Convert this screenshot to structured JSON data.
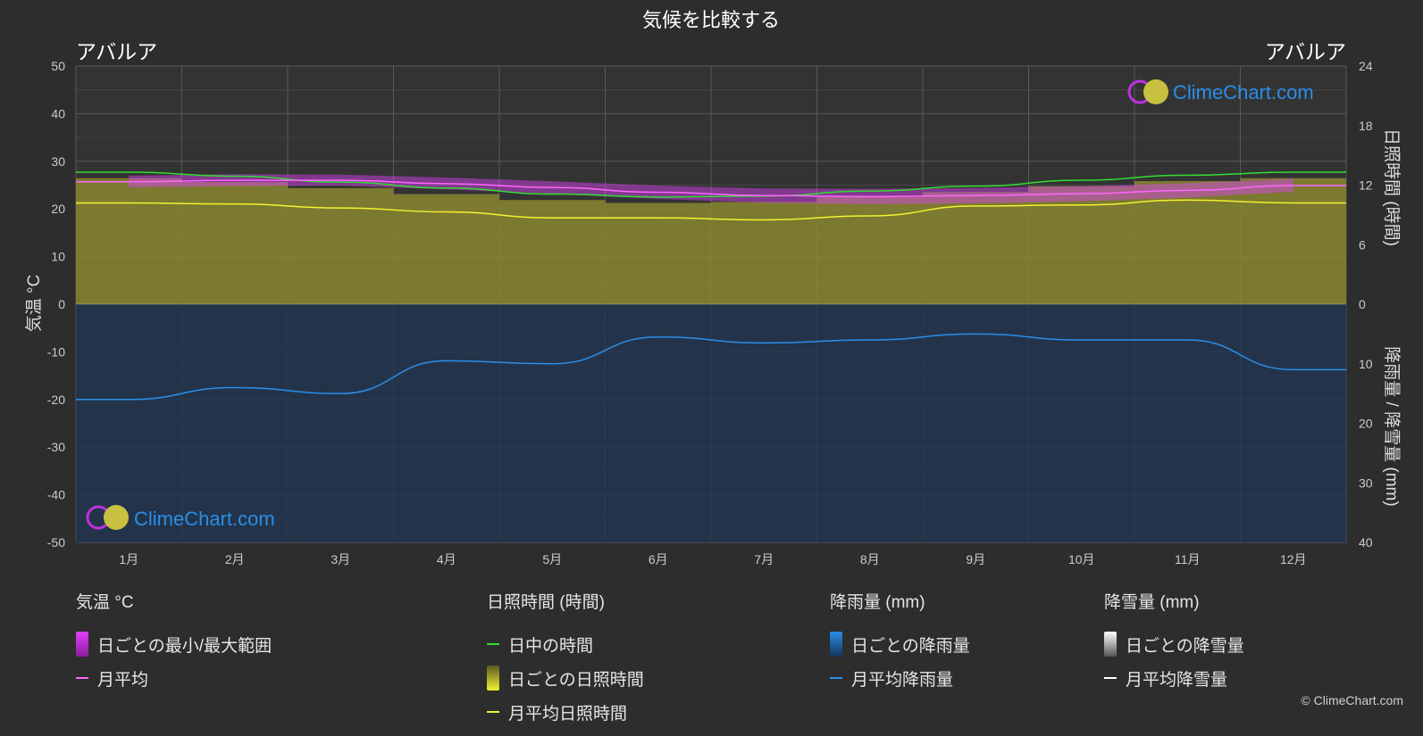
{
  "header": {
    "title": "気候を比較する",
    "location_left": "アバルア",
    "location_right": "アバルア",
    "left_axis_label": "気温 °C",
    "right_axis_label_top": "日照時間 (時間)",
    "right_axis_label_bottom": "降雨量 / 降雪量 (mm)"
  },
  "watermark": {
    "text": "ClimeChart.com"
  },
  "copyright": "© ClimeChart.com",
  "colors": {
    "background": "#2d2d2d",
    "grid": "#555555",
    "temp_range": "#e040fb",
    "temp_avg": "#ff66ff",
    "daylight": "#33dd33",
    "sunshine_fill": "#a9a437",
    "sunshine_avg": "#f2f230",
    "rain_fill": "#1e5a8c",
    "rain_avg": "#2a8ee8",
    "snow_avg": "#ffffff"
  },
  "chart_data": {
    "type": "line",
    "title": "気候を比較する",
    "categories": [
      "1月",
      "2月",
      "3月",
      "4月",
      "5月",
      "6月",
      "7月",
      "8月",
      "9月",
      "10月",
      "11月",
      "12月"
    ],
    "left_axis": {
      "label": "気温 °C",
      "ticks": [
        50,
        40,
        30,
        20,
        10,
        0,
        -10,
        -20,
        -30,
        -40,
        -50
      ],
      "ylim": [
        -50,
        50
      ]
    },
    "right_axis_top": {
      "label": "日照時間 (時間)",
      "ticks": [
        24,
        18,
        12,
        6,
        0
      ],
      "ylim": [
        0,
        24
      ]
    },
    "right_axis_bottom": {
      "label": "降雨量 / 降雪量 (mm)",
      "ticks": [
        0,
        10,
        20,
        30,
        40
      ],
      "ylim": [
        0,
        40
      ]
    },
    "series": [
      {
        "name": "月平均",
        "unit": "°C",
        "values": [
          25.7,
          26.0,
          26.0,
          25.3,
          24.5,
          23.5,
          22.8,
          22.6,
          22.8,
          23.2,
          23.9,
          24.9
        ]
      },
      {
        "name": "日中の時間",
        "unit": "時間",
        "values": [
          13.3,
          12.9,
          12.3,
          11.7,
          11.1,
          10.8,
          10.9,
          11.4,
          11.9,
          12.5,
          13.0,
          13.3
        ]
      },
      {
        "name": "月平均日照時間",
        "unit": "時間",
        "values": [
          10.2,
          10.1,
          9.7,
          9.3,
          8.7,
          8.7,
          8.5,
          8.9,
          9.9,
          10.0,
          10.5,
          10.2
        ]
      },
      {
        "name": "月平均降雨量",
        "unit": "mm",
        "values": [
          16.0,
          14.0,
          15.0,
          9.5,
          10.0,
          5.5,
          6.5,
          6.0,
          5.0,
          6.0,
          6.0,
          11.0
        ]
      },
      {
        "name": "月平均降雪量",
        "unit": "mm",
        "values": [
          0,
          0,
          0,
          0,
          0,
          0,
          0,
          0,
          0,
          0,
          0,
          0
        ]
      }
    ],
    "daily_temp_range": {
      "name": "日ごとの最小/最大範囲",
      "min": [
        24.5,
        24.8,
        24.9,
        24.1,
        23.2,
        22.1,
        21.3,
        21.0,
        21.2,
        21.6,
        22.4,
        23.6
      ],
      "max": [
        27.0,
        27.3,
        27.2,
        26.6,
        25.8,
        24.9,
        24.3,
        24.2,
        24.4,
        24.8,
        25.4,
        26.3
      ]
    },
    "grid": true,
    "legend_position": "bottom"
  },
  "legend": {
    "temperature": {
      "title": "気温 °C",
      "items": [
        "日ごとの最小/最大範囲",
        "月平均"
      ]
    },
    "sunshine": {
      "title": "日照時間 (時間)",
      "items": [
        "日中の時間",
        "日ごとの日照時間",
        "月平均日照時間"
      ]
    },
    "rain": {
      "title": "降雨量 (mm)",
      "items": [
        "日ごとの降雨量",
        "月平均降雨量"
      ]
    },
    "snow": {
      "title": "降雪量 (mm)",
      "items": [
        "日ごとの降雪量",
        "月平均降雪量"
      ]
    }
  }
}
